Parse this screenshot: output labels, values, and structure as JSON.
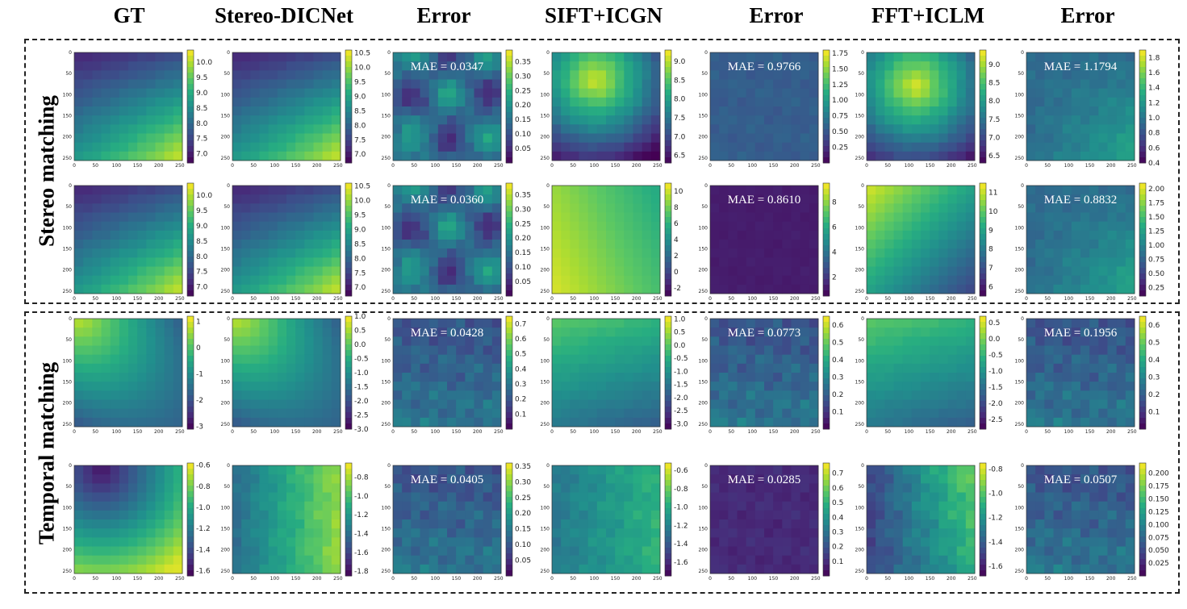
{
  "column_headers": [
    "GT",
    "Stereo-DICNet",
    "Error",
    "SIFT+ICGN",
    "Error",
    "FFT+ICLM",
    "Error"
  ],
  "row_groups": [
    "Stereo matching",
    "Temporal matching"
  ],
  "axis_tick_labels": [
    "0",
    "50",
    "100",
    "150",
    "200",
    "250"
  ],
  "chart_data": {
    "type": "heatmap",
    "colormap": "viridis",
    "image_size": 256,
    "panels": [
      {
        "row": 0,
        "col": 0,
        "clim": [
          6.7,
          10.4
        ],
        "colorbar_ticks": [
          "10.0",
          "9.5",
          "9.0",
          "8.5",
          "8.0",
          "7.5",
          "7.0"
        ],
        "mae": null
      },
      {
        "row": 0,
        "col": 1,
        "clim": [
          6.7,
          10.6
        ],
        "colorbar_ticks": [
          "10.5",
          "10.0",
          "9.5",
          "9.0",
          "8.5",
          "8.0",
          "7.5",
          "7.0"
        ],
        "mae": null
      },
      {
        "row": 0,
        "col": 2,
        "clim": [
          0.0,
          0.39
        ],
        "colorbar_ticks": [
          "0.35",
          "0.30",
          "0.25",
          "0.20",
          "0.15",
          "0.10",
          "0.05"
        ],
        "mae": "MAE = 0.0347"
      },
      {
        "row": 0,
        "col": 3,
        "clim": [
          6.3,
          9.3
        ],
        "colorbar_ticks": [
          "9.0",
          "8.5",
          "8.0",
          "7.5",
          "7.0",
          "6.5"
        ],
        "mae": null
      },
      {
        "row": 0,
        "col": 4,
        "clim": [
          0.0,
          1.8
        ],
        "colorbar_ticks": [
          "1.75",
          "1.50",
          "1.25",
          "1.00",
          "0.75",
          "0.50",
          "0.25"
        ],
        "mae": "MAE = 0.9766"
      },
      {
        "row": 0,
        "col": 5,
        "clim": [
          6.3,
          9.4
        ],
        "colorbar_ticks": [
          "9.0",
          "8.5",
          "8.0",
          "7.5",
          "7.0",
          "6.5"
        ],
        "mae": null
      },
      {
        "row": 0,
        "col": 6,
        "clim": [
          0.4,
          1.9
        ],
        "colorbar_ticks": [
          "1.8",
          "1.6",
          "1.4",
          "1.2",
          "1.0",
          "0.8",
          "0.6",
          "0.4"
        ],
        "mae": "MAE = 1.1794"
      },
      {
        "row": 1,
        "col": 0,
        "clim": [
          6.7,
          10.4
        ],
        "colorbar_ticks": [
          "10.0",
          "9.5",
          "9.0",
          "8.5",
          "8.0",
          "7.5",
          "7.0"
        ],
        "mae": null
      },
      {
        "row": 1,
        "col": 1,
        "clim": [
          6.7,
          10.6
        ],
        "colorbar_ticks": [
          "10.5",
          "10.0",
          "9.5",
          "9.0",
          "8.5",
          "8.0",
          "7.5",
          "7.0"
        ],
        "mae": null
      },
      {
        "row": 1,
        "col": 2,
        "clim": [
          0.0,
          0.39
        ],
        "colorbar_ticks": [
          "0.35",
          "0.30",
          "0.25",
          "0.20",
          "0.15",
          "0.10",
          "0.05"
        ],
        "mae": "MAE = 0.0360"
      },
      {
        "row": 1,
        "col": 3,
        "clim": [
          -3,
          11
        ],
        "colorbar_ticks": [
          "10",
          "8",
          "6",
          "4",
          "2",
          "0",
          "-2"
        ],
        "mae": null
      },
      {
        "row": 1,
        "col": 4,
        "clim": [
          0.5,
          9.5
        ],
        "colorbar_ticks": [
          "8",
          "6",
          "4",
          "2"
        ],
        "mae": "MAE = 0.8610"
      },
      {
        "row": 1,
        "col": 5,
        "clim": [
          5.5,
          11.5
        ],
        "colorbar_ticks": [
          "11",
          "10",
          "9",
          "8",
          "7",
          "6"
        ],
        "mae": null
      },
      {
        "row": 1,
        "col": 6,
        "clim": [
          0.1,
          2.1
        ],
        "colorbar_ticks": [
          "2.00",
          "1.75",
          "1.50",
          "1.25",
          "1.00",
          "0.75",
          "0.50",
          "0.25"
        ],
        "mae": "MAE = 0.8832"
      },
      {
        "row": 2,
        "col": 0,
        "clim": [
          -3.1,
          1.2
        ],
        "colorbar_ticks": [
          "1",
          "0",
          "-1",
          "-2",
          "-3"
        ],
        "mae": null
      },
      {
        "row": 2,
        "col": 1,
        "clim": [
          -3.0,
          1.0
        ],
        "colorbar_ticks": [
          "1.0",
          "0.5",
          "0.0",
          "-0.5",
          "-1.0",
          "-1.5",
          "-2.0",
          "-2.5",
          "-3.0"
        ],
        "mae": null
      },
      {
        "row": 2,
        "col": 2,
        "clim": [
          0.0,
          0.75
        ],
        "colorbar_ticks": [
          "0.7",
          "0.6",
          "0.5",
          "0.4",
          "0.3",
          "0.2",
          "0.1"
        ],
        "mae": "MAE = 0.0428"
      },
      {
        "row": 2,
        "col": 3,
        "clim": [
          -3.2,
          1.1
        ],
        "colorbar_ticks": [
          "1.0",
          "0.5",
          "0.0",
          "-0.5",
          "-1.0",
          "-1.5",
          "-2.0",
          "-2.5",
          "-3.0"
        ],
        "mae": null
      },
      {
        "row": 2,
        "col": 4,
        "clim": [
          0.0,
          0.65
        ],
        "colorbar_ticks": [
          "0.6",
          "0.5",
          "0.4",
          "0.3",
          "0.2",
          "0.1"
        ],
        "mae": "MAE = 0.0773"
      },
      {
        "row": 2,
        "col": 5,
        "clim": [
          -2.8,
          0.7
        ],
        "colorbar_ticks": [
          "0.5",
          "0.0",
          "-0.5",
          "-1.0",
          "-1.5",
          "-2.0",
          "-2.5"
        ],
        "mae": null
      },
      {
        "row": 2,
        "col": 6,
        "clim": [
          0.0,
          0.65
        ],
        "colorbar_ticks": [
          "0.6",
          "0.5",
          "0.4",
          "0.3",
          "0.2",
          "0.1"
        ],
        "mae": "MAE = 0.1956"
      },
      {
        "row": 3,
        "col": 0,
        "clim": [
          -1.65,
          -0.58
        ],
        "colorbar_ticks": [
          "-0.6",
          "-0.8",
          "-1.0",
          "-1.2",
          "-1.4",
          "-1.6"
        ],
        "mae": null
      },
      {
        "row": 3,
        "col": 1,
        "clim": [
          -1.85,
          -0.65
        ],
        "colorbar_ticks": [
          "-0.8",
          "-1.0",
          "-1.2",
          "-1.4",
          "-1.6",
          "-1.8"
        ],
        "mae": null
      },
      {
        "row": 3,
        "col": 2,
        "clim": [
          0.0,
          0.36
        ],
        "colorbar_ticks": [
          "0.35",
          "0.30",
          "0.25",
          "0.20",
          "0.15",
          "0.10",
          "0.05"
        ],
        "mae": "MAE = 0.0405"
      },
      {
        "row": 3,
        "col": 3,
        "clim": [
          -1.75,
          -0.52
        ],
        "colorbar_ticks": [
          "-0.6",
          "-0.8",
          "-1.0",
          "-1.2",
          "-1.4",
          "-1.6"
        ],
        "mae": null
      },
      {
        "row": 3,
        "col": 4,
        "clim": [
          0.0,
          0.77
        ],
        "colorbar_ticks": [
          "0.7",
          "0.6",
          "0.5",
          "0.4",
          "0.3",
          "0.2",
          "0.1"
        ],
        "mae": "MAE = 0.0285"
      },
      {
        "row": 3,
        "col": 5,
        "clim": [
          -1.68,
          -0.75
        ],
        "colorbar_ticks": [
          "-0.8",
          "-1.0",
          "-1.2",
          "-1.4",
          "-1.6"
        ],
        "mae": null
      },
      {
        "row": 3,
        "col": 6,
        "clim": [
          0.0,
          0.22
        ],
        "colorbar_ticks": [
          "0.200",
          "0.175",
          "0.150",
          "0.125",
          "0.100",
          "0.075",
          "0.050",
          "0.025"
        ],
        "mae": "MAE = 0.0507"
      }
    ]
  }
}
